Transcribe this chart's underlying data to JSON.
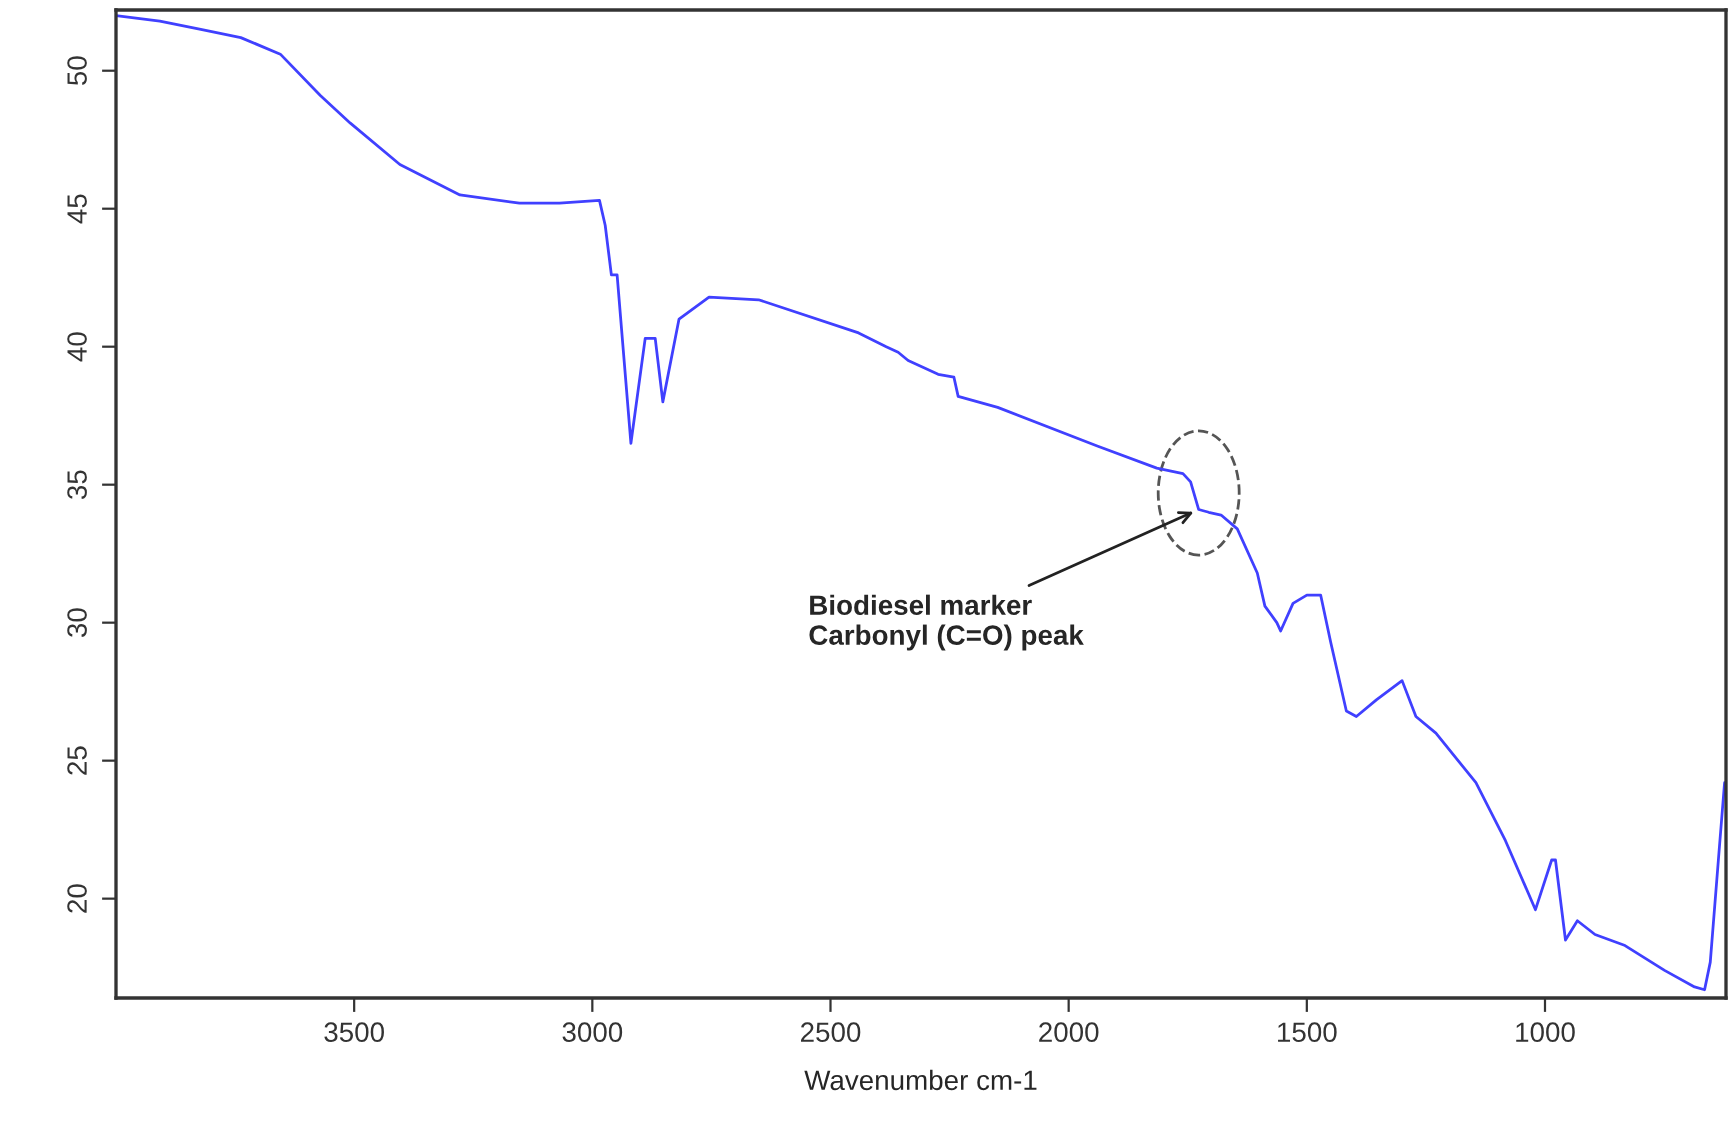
{
  "chart_data": {
    "type": "line",
    "xlabel": "Wavenumber cm-1",
    "x": [
      4000,
      3908,
      3822,
      3738,
      3655,
      3571,
      3508,
      3404,
      3278,
      3153,
      3069,
      2985,
      2973,
      2960,
      2948,
      2919,
      2889,
      2868,
      2852,
      2818,
      2755,
      2651,
      2441,
      2383,
      2358,
      2337,
      2274,
      2241,
      2232,
      2149,
      1940,
      1815,
      1760,
      1744,
      1727,
      1706,
      1680,
      1646,
      1604,
      1588,
      1563,
      1555,
      1529,
      1500,
      1471,
      1450,
      1417,
      1396,
      1354,
      1300,
      1271,
      1229,
      1145,
      1083,
      1020,
      986,
      978,
      957,
      932,
      895,
      832,
      749,
      686,
      665,
      653,
      636,
      623
    ],
    "series": [
      {
        "color": "#4040ff",
        "values": [
          52.0,
          51.8,
          51.5,
          51.2,
          50.6,
          49.1,
          48.1,
          46.6,
          45.5,
          45.2,
          45.2,
          45.3,
          44.4,
          42.6,
          42.6,
          36.5,
          40.3,
          40.3,
          38.0,
          41.0,
          41.8,
          41.7,
          40.5,
          40.0,
          39.8,
          39.5,
          39.0,
          38.9,
          38.2,
          37.8,
          36.4,
          35.6,
          35.4,
          35.1,
          34.1,
          34.0,
          33.9,
          33.4,
          31.8,
          30.6,
          30.0,
          29.7,
          30.7,
          31.0,
          31.0,
          29.3,
          26.8,
          26.6,
          27.2,
          27.9,
          26.6,
          26.0,
          24.2,
          22.1,
          19.6,
          21.4,
          21.4,
          18.5,
          19.2,
          18.7,
          18.3,
          17.4,
          16.8,
          16.7,
          17.7,
          21.4,
          24.2
        ]
      }
    ],
    "xlim": [
      4000,
      620
    ],
    "ylim": [
      16.4,
      52.2
    ],
    "xticks": [
      3500,
      3000,
      2500,
      2000,
      1500,
      1000
    ],
    "yticks": [
      20,
      25,
      30,
      35,
      40,
      45,
      50
    ],
    "grid": false,
    "marker": "none",
    "line_style": "solid",
    "annotations": [
      {
        "text": "Biodiesel marker\nCarbonyl (C=O) peak",
        "x": 1727,
        "y": 34.1
      }
    ]
  }
}
